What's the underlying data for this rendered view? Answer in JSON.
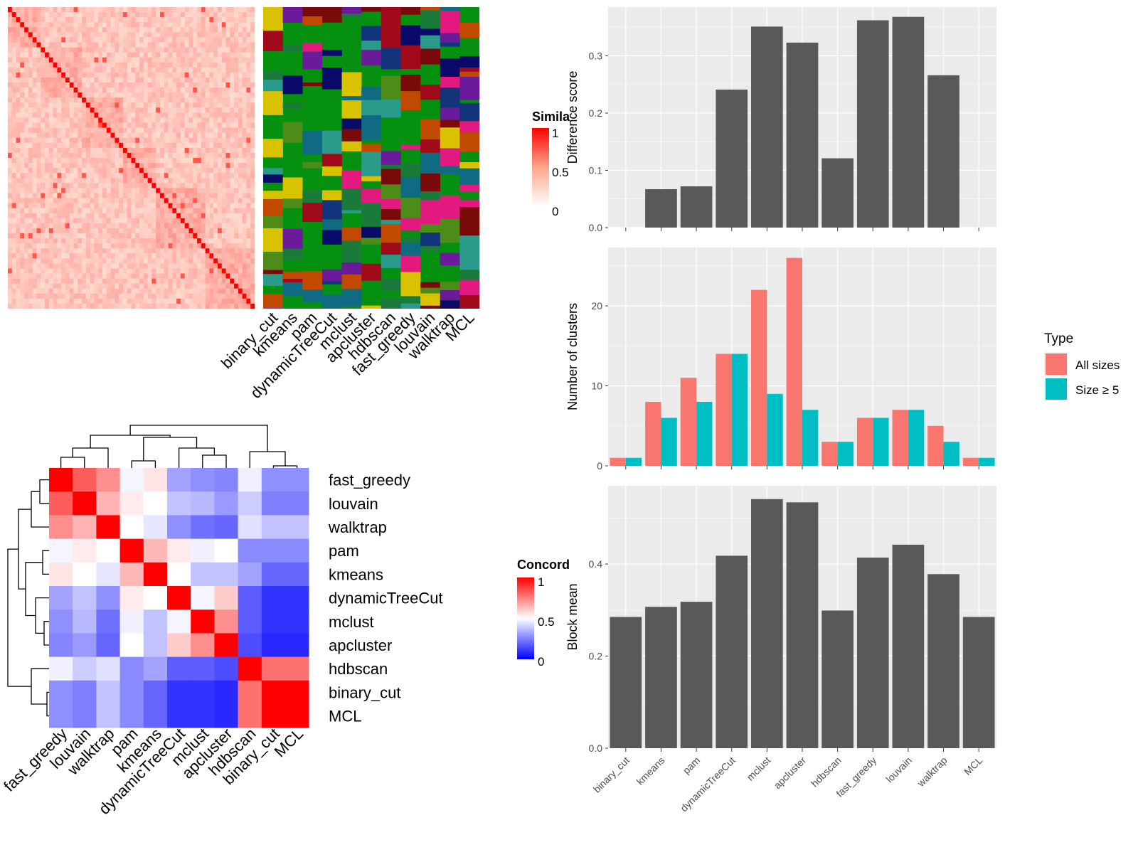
{
  "methods_order": [
    "binary_cut",
    "kmeans",
    "pam",
    "dynamicTreeCut",
    "mclust",
    "apcluster",
    "hdbscan",
    "fast_greedy",
    "louvain",
    "walktrap",
    "MCL"
  ],
  "similarity_heatmap": {
    "legend_title": "Simila",
    "legend_ticks": [
      "1",
      "0.5",
      "0"
    ]
  },
  "partition_heatmap": {
    "columns": [
      "binary_cut",
      "kmeans",
      "pam",
      "dynamicTreeCut",
      "mclust",
      "apcluster",
      "hdbscan",
      "fast_greedy",
      "louvain",
      "walktrap",
      "MCL"
    ],
    "background_color": "#059010"
  },
  "concordance_heatmap": {
    "legend_title": "Concord",
    "legend_ticks": [
      "1",
      "0.5",
      "0"
    ],
    "row_labels": [
      "fast_greedy",
      "louvain",
      "walktrap",
      "pam",
      "kmeans",
      "dynamicTreeCut",
      "mclust",
      "apcluster",
      "hdbscan",
      "binary_cut",
      "MCL"
    ],
    "col_labels": [
      "fast_greedy",
      "louvain",
      "walktrap",
      "pam",
      "kmeans",
      "dynamicTreeCut",
      "mclust",
      "apcluster",
      "hdbscan",
      "binary_cut",
      "MCL"
    ]
  },
  "chart_data": [
    {
      "type": "bar",
      "categories": [
        "binary_cut",
        "kmeans",
        "pam",
        "dynamicTreeCut",
        "mclust",
        "apcluster",
        "hdbscan",
        "fast_greedy",
        "louvain",
        "walktrap",
        "MCL"
      ],
      "values": [
        0,
        0.067,
        0.072,
        0.241,
        0.351,
        0.323,
        0.121,
        0.362,
        0.368,
        0.266,
        0
      ],
      "ylabel": "Difference score",
      "yticks": [
        "0.0",
        "0.1",
        "0.2",
        "0.3"
      ],
      "ylim": [
        0,
        0.385
      ],
      "bar_color": "#595959"
    },
    {
      "type": "bar",
      "categories": [
        "binary_cut",
        "kmeans",
        "pam",
        "dynamicTreeCut",
        "mclust",
        "apcluster",
        "hdbscan",
        "fast_greedy",
        "louvain",
        "walktrap",
        "MCL"
      ],
      "series": [
        {
          "name": "All sizes",
          "values": [
            1,
            8,
            11,
            14,
            22,
            26,
            3,
            6,
            7,
            5,
            1
          ],
          "color": "#f8766d"
        },
        {
          "name": "Size ≥ 5",
          "values": [
            1,
            6,
            8,
            14,
            9,
            7,
            3,
            6,
            7,
            3,
            1
          ],
          "color": "#00bfc4"
        }
      ],
      "ylabel": "Number of clusters",
      "yticks": [
        "0",
        "10",
        "20"
      ],
      "ylim": [
        0,
        27.3
      ],
      "legend_title": "Type",
      "legend_position": "right"
    },
    {
      "type": "bar",
      "categories": [
        "binary_cut",
        "kmeans",
        "pam",
        "dynamicTreeCut",
        "mclust",
        "apcluster",
        "hdbscan",
        "fast_greedy",
        "louvain",
        "walktrap",
        "MCL"
      ],
      "values": [
        0.285,
        0.307,
        0.318,
        0.418,
        0.541,
        0.534,
        0.299,
        0.414,
        0.442,
        0.378,
        0.285
      ],
      "ylabel": "Block mean",
      "yticks": [
        "0.0",
        "0.2",
        "0.4"
      ],
      "ylim": [
        0,
        0.57
      ],
      "bar_color": "#595959"
    },
    {
      "type": "heatmap",
      "rows": [
        "fast_greedy",
        "louvain",
        "walktrap",
        "pam",
        "kmeans",
        "dynamicTreeCut",
        "mclust",
        "apcluster",
        "hdbscan",
        "binary_cut",
        "MCL"
      ],
      "cols": [
        "fast_greedy",
        "louvain",
        "walktrap",
        "pam",
        "kmeans",
        "dynamicTreeCut",
        "mclust",
        "apcluster",
        "hdbscan",
        "binary_cut",
        "MCL"
      ],
      "values": [
        [
          1.0,
          0.82,
          0.72,
          0.48,
          0.55,
          0.32,
          0.28,
          0.26,
          0.47,
          0.28,
          0.28
        ],
        [
          0.82,
          1.0,
          0.65,
          0.54,
          0.5,
          0.38,
          0.36,
          0.3,
          0.4,
          0.25,
          0.25
        ],
        [
          0.72,
          0.65,
          1.0,
          0.5,
          0.45,
          0.28,
          0.22,
          0.2,
          0.44,
          0.38,
          0.38
        ],
        [
          0.48,
          0.54,
          0.5,
          1.0,
          0.64,
          0.54,
          0.47,
          0.5,
          0.27,
          0.27,
          0.27
        ],
        [
          0.55,
          0.5,
          0.45,
          0.64,
          1.0,
          0.5,
          0.38,
          0.38,
          0.32,
          0.2,
          0.2
        ],
        [
          0.32,
          0.38,
          0.28,
          0.54,
          0.5,
          1.0,
          0.48,
          0.6,
          0.18,
          0.1,
          0.1
        ],
        [
          0.28,
          0.36,
          0.22,
          0.47,
          0.38,
          0.48,
          1.0,
          0.72,
          0.18,
          0.1,
          0.1
        ],
        [
          0.26,
          0.3,
          0.2,
          0.5,
          0.38,
          0.6,
          0.72,
          1.0,
          0.15,
          0.08,
          0.08
        ],
        [
          0.47,
          0.4,
          0.44,
          0.27,
          0.32,
          0.18,
          0.18,
          0.15,
          1.0,
          0.78,
          0.78
        ],
        [
          0.28,
          0.25,
          0.38,
          0.27,
          0.2,
          0.1,
          0.1,
          0.08,
          0.78,
          1.0,
          1.0
        ],
        [
          0.28,
          0.25,
          0.38,
          0.27,
          0.2,
          0.1,
          0.1,
          0.08,
          0.78,
          1.0,
          1.0
        ]
      ],
      "legend_title": "Concord",
      "scale": {
        "low": "#0000ff",
        "mid": "#ffffff",
        "high": "#ff0000",
        "ticks": [
          "0",
          "0.5",
          "1"
        ]
      }
    }
  ]
}
